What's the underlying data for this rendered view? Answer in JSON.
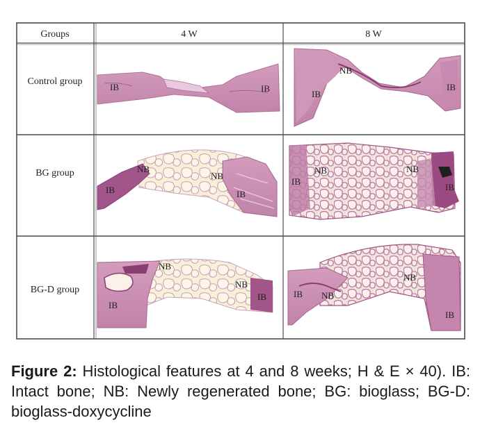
{
  "table": {
    "headers": [
      "Groups",
      "4 W",
      "8 W"
    ],
    "rows": [
      {
        "group": "Control group",
        "w4_labels": [
          "IB",
          "IB"
        ],
        "w8_labels": [
          "NB",
          "IB",
          "IB"
        ]
      },
      {
        "group": "BG group",
        "w4_labels": [
          "NB",
          "NB",
          "IB",
          "IB"
        ],
        "w8_labels": [
          "NB",
          "NB",
          "IB",
          "IB"
        ]
      },
      {
        "group": "BG-D group",
        "w4_labels": [
          "NB",
          "NB",
          "IB",
          "IB"
        ],
        "w8_labels": [
          "NB",
          "IB",
          "NB",
          "IB"
        ]
      }
    ]
  },
  "caption": {
    "label": "Figure 2:",
    "text": " Histological features at 4 and 8 weeks; H & E × 40). IB: Intact bone; NB: Newly regenerated bone; BG: bioglass; BG-D: bioglass-doxycycline"
  },
  "colors": {
    "tissue_pink": "#c98fb4",
    "tissue_dark": "#a0568a",
    "scaffold_bg": "#f6eccf",
    "grid": "#4a4a4a"
  }
}
